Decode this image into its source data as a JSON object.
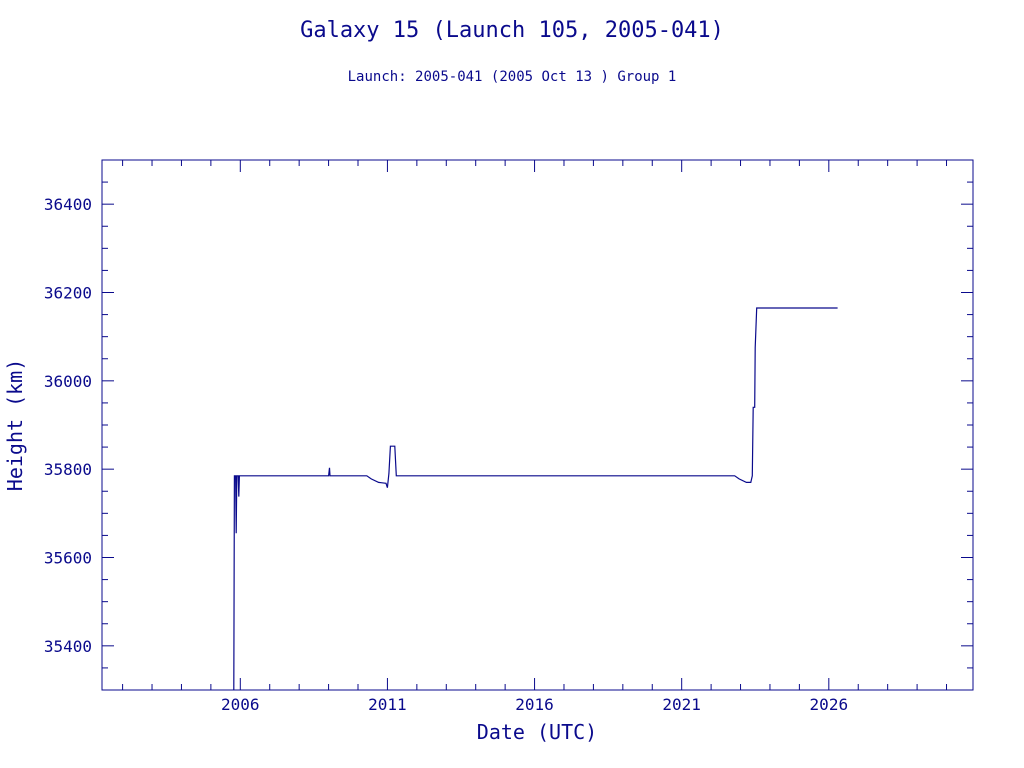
{
  "colors": {
    "ink": "#0a0a8c",
    "background": "#ffffff"
  },
  "chart_data": {
    "type": "line",
    "title": "Galaxy 15 (Launch 105, 2005-041)",
    "subtitle": "Launch: 2005-041  (2005 Oct 13 )  Group 1",
    "xlabel": "Date (UTC)",
    "ylabel": "Height (km)",
    "xlim": [
      2001.3,
      2030.9
    ],
    "ylim": [
      35300,
      36500
    ],
    "x_ticks": [
      2006,
      2011,
      2016,
      2021,
      2026
    ],
    "x_tick_labels": [
      "2006",
      "2011",
      "2016",
      "2021",
      "2026"
    ],
    "y_ticks": [
      35400,
      35600,
      35800,
      36000,
      36200,
      36400
    ],
    "y_tick_labels": [
      "35400",
      "35600",
      "35800",
      "36000",
      "36200",
      "36400"
    ],
    "grid": false,
    "series": [
      {
        "values": [
          [
            2005.78,
            35300
          ],
          [
            2005.8,
            35785
          ],
          [
            2005.84,
            35785
          ],
          [
            2005.86,
            35655
          ],
          [
            2005.88,
            35785
          ],
          [
            2005.93,
            35785
          ],
          [
            2005.95,
            35738
          ],
          [
            2005.97,
            35785
          ],
          [
            2009.0,
            35785
          ],
          [
            2009.03,
            35803
          ],
          [
            2009.05,
            35785
          ],
          [
            2010.3,
            35785
          ],
          [
            2010.45,
            35778
          ],
          [
            2010.7,
            35770
          ],
          [
            2010.95,
            35768
          ],
          [
            2011.0,
            35758
          ],
          [
            2011.05,
            35790
          ],
          [
            2011.1,
            35852
          ],
          [
            2011.25,
            35852
          ],
          [
            2011.3,
            35785
          ],
          [
            2020.0,
            35785
          ],
          [
            2022.8,
            35785
          ],
          [
            2022.95,
            35778
          ],
          [
            2023.2,
            35770
          ],
          [
            2023.35,
            35770
          ],
          [
            2023.4,
            35785
          ],
          [
            2023.43,
            35940
          ],
          [
            2023.48,
            35940
          ],
          [
            2023.5,
            36075
          ],
          [
            2023.55,
            36165
          ],
          [
            2026.3,
            36165
          ]
        ]
      }
    ]
  }
}
